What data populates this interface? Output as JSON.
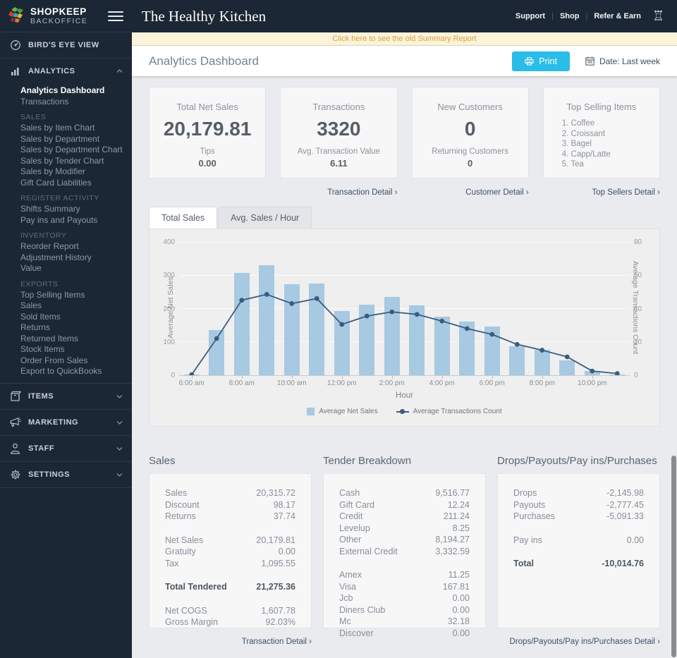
{
  "header": {
    "store_name": "The Healthy Kitchen",
    "links": [
      "Support",
      "Shop",
      "Refer & Earn"
    ]
  },
  "banner": {
    "text": "Click here to see the old Summary Report"
  },
  "toolbar": {
    "title": "Analytics Dashboard",
    "print_label": "Print",
    "date_label": "Date: Last week"
  },
  "sidebar": {
    "logo_line1": "SHOPKEEP",
    "logo_line2": "BACKOFFICE",
    "top_item": "BIRD'S EYE VIEW",
    "analytics_label": "ANALYTICS",
    "analytics_items": [
      {
        "label": "Analytics Dashboard",
        "active": true
      },
      {
        "label": "Transactions"
      },
      {
        "header": "SALES"
      },
      {
        "label": "Sales by Item Chart"
      },
      {
        "label": "Sales by Department"
      },
      {
        "label": "Sales by Department Chart"
      },
      {
        "label": "Sales by Tender Chart"
      },
      {
        "label": "Sales by Modifier"
      },
      {
        "label": "Gift Card Liabilities"
      },
      {
        "header": "REGISTER ACTIVITY"
      },
      {
        "label": "Shifts Summary"
      },
      {
        "label": "Pay ins and Payouts"
      },
      {
        "header": "INVENTORY"
      },
      {
        "label": "Reorder Report"
      },
      {
        "label": "Adjustment History"
      },
      {
        "label": "Value"
      },
      {
        "header": "EXPORTS"
      },
      {
        "label": "Top Selling Items"
      },
      {
        "label": "Sales"
      },
      {
        "label": "Sold Items"
      },
      {
        "label": "Returns"
      },
      {
        "label": "Returned Items"
      },
      {
        "label": "Stock Items"
      },
      {
        "label": "Order From Sales"
      },
      {
        "label": "Export to QuickBooks"
      }
    ],
    "bottom_items": [
      {
        "label": "ITEMS",
        "icon": "box-icon"
      },
      {
        "label": "MARKETING",
        "icon": "megaphone-icon"
      },
      {
        "label": "STAFF",
        "icon": "person-icon"
      },
      {
        "label": "SETTINGS",
        "icon": "gear-icon"
      }
    ]
  },
  "cards": [
    {
      "title": "Total Net Sales",
      "value": "20,179.81",
      "sub_label": "Tips",
      "sub_value": "0.00",
      "link": ""
    },
    {
      "title": "Transactions",
      "value": "3320",
      "sub_label": "Avg. Transaction Value",
      "sub_value": "6.11",
      "link": "Transaction Detail ›"
    },
    {
      "title": "New Customers",
      "value": "0",
      "sub_label": "Returning Customers",
      "sub_value": "0",
      "link": "Customer Detail ›"
    },
    {
      "title": "Top Selling Items",
      "list": [
        "1. Coffee",
        "2. Croissant",
        "3. Bagel",
        "4. Capp/Latte",
        "5. Tea"
      ],
      "link": "Top Sellers Detail ›"
    }
  ],
  "tabs": {
    "items": [
      "Total Sales",
      "Avg. Sales / Hour"
    ],
    "active": "Total Sales"
  },
  "chart_data": {
    "type": "bar",
    "x": [
      "6:00 am",
      "7:00 am",
      "8:00 am",
      "9:00 am",
      "10:00 am",
      "11:00 am",
      "12:00 pm",
      "1:00 pm",
      "2:00 pm",
      "3:00 pm",
      "4:00 pm",
      "5:00 pm",
      "6:00 pm",
      "7:00 pm",
      "8:00 pm",
      "9:00 pm",
      "10:00 pm",
      "11:00 pm"
    ],
    "x_tick_every": 2,
    "xlabel": "Hour",
    "series": [
      {
        "name": "Average Net Sales",
        "type": "bar",
        "axis": "left",
        "color": "#a7c9e2",
        "values": [
          2,
          135,
          307,
          331,
          273,
          275,
          193,
          212,
          234,
          210,
          176,
          160,
          146,
          86,
          77,
          45,
          12,
          3
        ]
      },
      {
        "name": "Average Transactions Count",
        "type": "line",
        "axis": "right",
        "color": "#3b5c7e",
        "values": [
          0.3,
          22,
          45,
          48.5,
          43,
          46,
          30.5,
          35.5,
          38,
          36.5,
          32.5,
          28,
          24.5,
          18.5,
          15,
          11,
          2.5,
          1
        ]
      }
    ],
    "left_axis": {
      "label": "Average Net Sales",
      "ticks": [
        0,
        100,
        200,
        300,
        400
      ],
      "max": 400
    },
    "right_axis": {
      "label": "Average Transactions Count",
      "ticks": [
        0,
        20,
        40,
        60,
        80
      ],
      "max": 80
    },
    "grid": true,
    "legend_position": "bottom"
  },
  "tables": [
    {
      "title": "Sales",
      "rows": [
        [
          "Sales",
          "20,315.72"
        ],
        [
          "Discount",
          "98.17"
        ],
        [
          "Returns",
          "37.74"
        ],
        null,
        [
          "Net Sales",
          "20,179.81"
        ],
        [
          "Gratuity",
          "0.00"
        ],
        [
          "Tax",
          "1,095.55"
        ],
        null,
        [
          "Total Tendered",
          "21,275.36",
          true
        ],
        null,
        [
          "Net COGS",
          "1,607.78"
        ],
        [
          "Gross Margin",
          "92.03%"
        ]
      ],
      "link": "Transaction Detail ›"
    },
    {
      "title": "Tender Breakdown",
      "rows": [
        [
          "Cash",
          "9,516.77"
        ],
        [
          "Gift Card",
          "12.24"
        ],
        [
          "Credit",
          "211.24"
        ],
        [
          "Levelup",
          "8.25"
        ],
        [
          "Other",
          "8,194.27"
        ],
        [
          "External Credit",
          "3,332.59"
        ],
        null,
        [
          "Amex",
          "11.25"
        ],
        [
          "Visa",
          "167.81"
        ],
        [
          "Jcb",
          "0.00"
        ],
        [
          "Diners Club",
          "0.00"
        ],
        [
          "Mc",
          "32.18"
        ],
        [
          "Discover",
          "0.00"
        ]
      ],
      "link": ""
    },
    {
      "title": "Drops/Payouts/Pay ins/Purchases",
      "rows": [
        [
          "Drops",
          "-2,145.98"
        ],
        [
          "Payouts",
          "-2,777.45"
        ],
        [
          "Purchases",
          "-5,091.33"
        ],
        null,
        [
          "Pay ins",
          "0.00"
        ],
        null,
        [
          "Total",
          "-10,014.76",
          true
        ]
      ],
      "link": "Drops/Payouts/Pay ins/Purchases Detail ›"
    }
  ],
  "colors": {
    "sidebar_bg": "#1b2734",
    "accent_cyan": "#29bde8",
    "banner_bg": "#fbf4da",
    "banner_text": "#dd9e3d",
    "bar": "#a7c9e2",
    "line": "#3b5c7e",
    "logo_marks": [
      "#6cb33f",
      "#d23f31",
      "#29a9c6",
      "#f0b32e",
      "#8f2b24",
      "#e07b2e"
    ]
  }
}
